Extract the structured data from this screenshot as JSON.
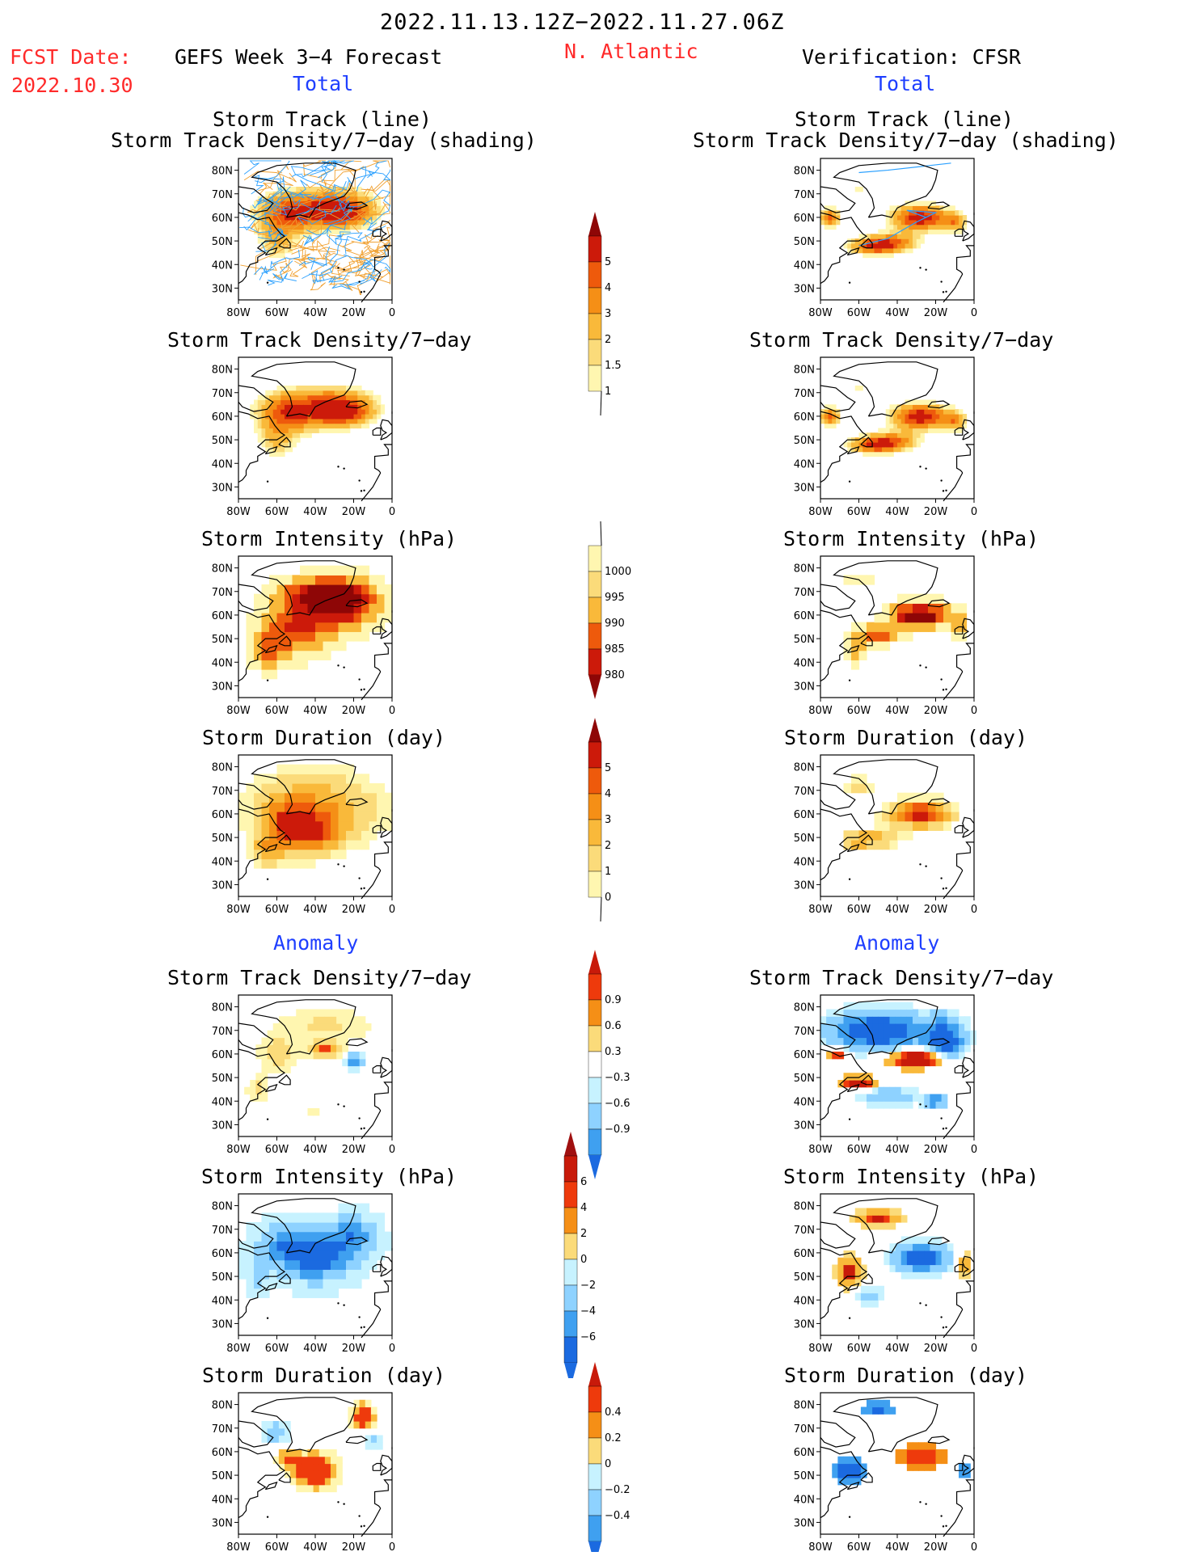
{
  "header": {
    "date_range": "2022.11.13.12Z−2022.11.27.06Z",
    "fcst_label": "FCST Date:",
    "fcst_date": "2022.10.30",
    "model_title": "GEFS Week 3−4 Forecast",
    "region": "N. Atlantic",
    "verification": "Verification: CFSR",
    "section_total_left": "Total",
    "section_total_right": "Total",
    "section_anom_left": "Anomaly",
    "section_anom_right": "Anomaly"
  },
  "titles": {
    "track_line": "Storm Track (line)",
    "track_shading": "Storm Track Density/7−day (shading)",
    "density": "Storm Track Density/7−day",
    "intensity": "Storm Intensity (hPa)",
    "duration": "Storm Duration (day)"
  },
  "axes": {
    "lat_ticks": [
      "80N",
      "70N",
      "60N",
      "50N",
      "40N",
      "30N"
    ],
    "lon_ticks": [
      "80W",
      "60W",
      "40W",
      "20W",
      "0"
    ]
  },
  "colors": {
    "land_outline": "#000000",
    "track_fcst_orange": "#f0a030",
    "track_blue": "#2aa0ff",
    "pos": [
      "#fff6b0",
      "#fbdb7a",
      "#f9b93a",
      "#f58f16",
      "#ee5a0c",
      "#cc1a0a",
      "#8e0606"
    ],
    "anom_pos": [
      "#fff6b0",
      "#fbdb7a",
      "#f9b93a",
      "#f58f16",
      "#ee3a0c",
      "#c81a0a"
    ],
    "anom_neg": [
      "#c7f2ff",
      "#8ed2ff",
      "#3fa0f0",
      "#1b6ae0"
    ]
  },
  "chart_data": [
    {
      "id": "total-density-shading-left",
      "type": "heatmap",
      "title": "Storm Track (line) / Storm Track Density/7−day (shading)",
      "source": "GEFS",
      "region_summary": "high density 55–65N, 40–20W",
      "levels": [
        1,
        1.5,
        2,
        3,
        4,
        5
      ]
    },
    {
      "id": "total-density-shading-right",
      "type": "heatmap",
      "title": "Storm Track (line) / Storm Track Density/7−day (shading)",
      "source": "CFSR",
      "region_summary": "max >5 near 60N 30W",
      "levels": [
        1,
        1.5,
        2,
        3,
        4,
        5
      ]
    },
    {
      "id": "total-density-left",
      "type": "heatmap",
      "title": "Storm Track Density/7−day",
      "levels": [
        1,
        1.5,
        2,
        3,
        4,
        5
      ]
    },
    {
      "id": "total-density-right",
      "type": "heatmap",
      "title": "Storm Track Density/7−day",
      "levels": [
        1,
        1.5,
        2,
        3,
        4,
        5
      ]
    },
    {
      "id": "total-intensity-left",
      "type": "heatmap",
      "title": "Storm Intensity (hPa)",
      "levels": [
        1000,
        995,
        990,
        985,
        980
      ]
    },
    {
      "id": "total-intensity-right",
      "type": "heatmap",
      "title": "Storm Intensity (hPa)",
      "levels": [
        1000,
        995,
        990,
        985,
        980
      ]
    },
    {
      "id": "total-duration-left",
      "type": "heatmap",
      "title": "Storm Duration (day)",
      "levels": [
        0,
        1,
        2,
        3,
        4,
        5
      ]
    },
    {
      "id": "total-duration-right",
      "type": "heatmap",
      "title": "Storm Duration (day)",
      "levels": [
        0,
        1,
        2,
        3,
        4,
        5
      ]
    },
    {
      "id": "anom-density-left",
      "type": "heatmap",
      "title": "Storm Track Density/7−day",
      "levels": [
        -0.9,
        -0.6,
        -0.3,
        0.3,
        0.6,
        0.9
      ]
    },
    {
      "id": "anom-density-right",
      "type": "heatmap",
      "title": "Storm Track Density/7−day",
      "levels": [
        -0.9,
        -0.6,
        -0.3,
        0.3,
        0.6,
        0.9
      ]
    },
    {
      "id": "anom-intensity-left",
      "type": "heatmap",
      "title": "Storm Intensity (hPa)",
      "levels": [
        -6,
        -4,
        -2,
        0,
        2,
        4,
        6
      ]
    },
    {
      "id": "anom-intensity-right",
      "type": "heatmap",
      "title": "Storm Intensity (hPa)",
      "levels": [
        -6,
        -4,
        -2,
        0,
        2,
        4,
        6
      ]
    },
    {
      "id": "anom-duration-left",
      "type": "heatmap",
      "title": "Storm Duration (day)",
      "levels": [
        -0.4,
        -0.2,
        0,
        0.2,
        0.4
      ]
    },
    {
      "id": "anom-duration-right",
      "type": "heatmap",
      "title": "Storm Duration (day)",
      "levels": [
        -0.4,
        -0.2,
        0,
        0.2,
        0.4
      ]
    }
  ],
  "colorbars": [
    {
      "id": "cb-density",
      "labels": [
        "5",
        "4",
        "3",
        "2",
        "1.5",
        "1"
      ]
    },
    {
      "id": "cb-intensity",
      "labels": [
        "1000",
        "995",
        "990",
        "985",
        "980"
      ]
    },
    {
      "id": "cb-duration",
      "labels": [
        "5",
        "4",
        "3",
        "2",
        "1",
        "0"
      ]
    },
    {
      "id": "cb-anom-density",
      "labels": [
        "0.9",
        "0.6",
        "0.3",
        "−0.3",
        "−0.6",
        "−0.9"
      ]
    },
    {
      "id": "cb-anom-intensity",
      "labels": [
        "6",
        "4",
        "2",
        "0",
        "−2",
        "−4",
        "−6"
      ]
    },
    {
      "id": "cb-anom-duration",
      "labels": [
        "0.4",
        "0.2",
        "0",
        "−0.2",
        "−0.4"
      ]
    }
  ]
}
